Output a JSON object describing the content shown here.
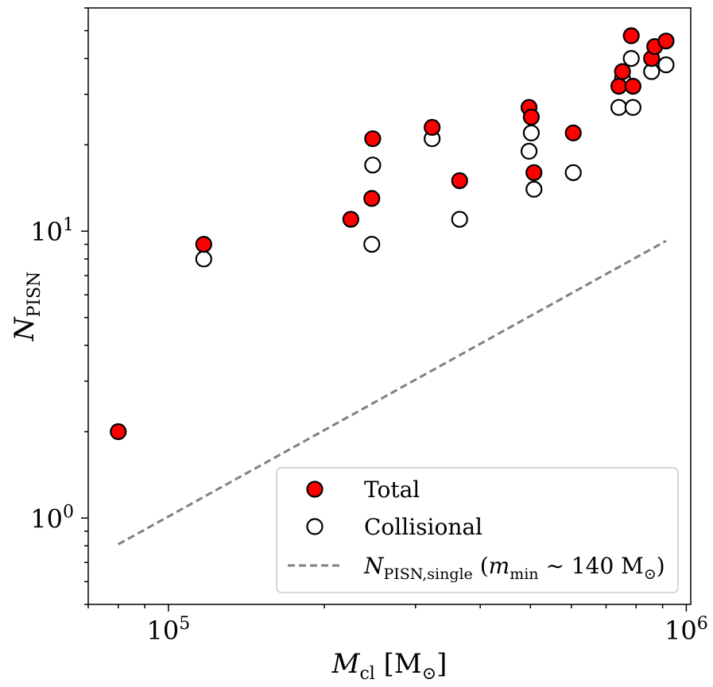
{
  "chart_data": {
    "type": "scatter",
    "xlabel": {
      "base": "M",
      "sub": "cl",
      "unit": "[M",
      "unit_sub": "⊙",
      "unit_close": "]"
    },
    "ylabel": {
      "base": "N",
      "sub": "PISN"
    },
    "xscale": "log",
    "yscale": "log",
    "xlim": [
      70000,
      1020000
    ],
    "ylim": [
      0.5,
      60
    ],
    "x_ticks": [
      {
        "value": 100000,
        "base": "10",
        "exp": "5"
      },
      {
        "value": 1000000,
        "base": "10",
        "exp": "6"
      }
    ],
    "y_ticks": [
      {
        "value": 1,
        "base": "10",
        "exp": "0"
      },
      {
        "value": 10,
        "base": "10",
        "exp": "1"
      }
    ],
    "grid": false,
    "legend_position": "bottom-right",
    "series": [
      {
        "name": "Total",
        "marker": "circle-filled",
        "color": "#ff0000",
        "points": [
          [
            80000,
            2
          ],
          [
            117000,
            9
          ],
          [
            225000,
            11
          ],
          [
            247000,
            13
          ],
          [
            248000,
            21
          ],
          [
            323000,
            23
          ],
          [
            365000,
            15
          ],
          [
            497000,
            27
          ],
          [
            502000,
            25
          ],
          [
            508000,
            16
          ],
          [
            605000,
            22
          ],
          [
            741000,
            32
          ],
          [
            753000,
            36
          ],
          [
            783000,
            48
          ],
          [
            789000,
            32
          ],
          [
            857000,
            40
          ],
          [
            869000,
            44
          ],
          [
            914000,
            46
          ]
        ]
      },
      {
        "name": "Collisional",
        "marker": "circle-open",
        "color": "#000000",
        "points": [
          [
            117000,
            8
          ],
          [
            247000,
            9
          ],
          [
            248000,
            17
          ],
          [
            323000,
            21
          ],
          [
            365000,
            11
          ],
          [
            497000,
            19
          ],
          [
            502000,
            22
          ],
          [
            508000,
            14
          ],
          [
            605000,
            16
          ],
          [
            741000,
            27
          ],
          [
            753000,
            34
          ],
          [
            783000,
            40
          ],
          [
            789000,
            27
          ],
          [
            857000,
            36
          ],
          [
            914000,
            38
          ]
        ]
      },
      {
        "name": "N_PISN,single (m_min ~ 140 M⊙)",
        "marker": "dashed-line",
        "color": "#808080",
        "points": [
          [
            80000,
            0.81
          ],
          [
            914000,
            9.25
          ]
        ]
      }
    ],
    "legend": [
      {
        "key": "total",
        "text": "Total"
      },
      {
        "key": "collisional",
        "text": "Collisional"
      },
      {
        "key": "single",
        "base": "N",
        "sub": "PISN,single",
        "paren_open": "(",
        "m": "m",
        "m_sub": "min",
        "rest": " ∼ 140 M",
        "rest_sub": "⊙",
        "paren_close": ")"
      }
    ]
  }
}
